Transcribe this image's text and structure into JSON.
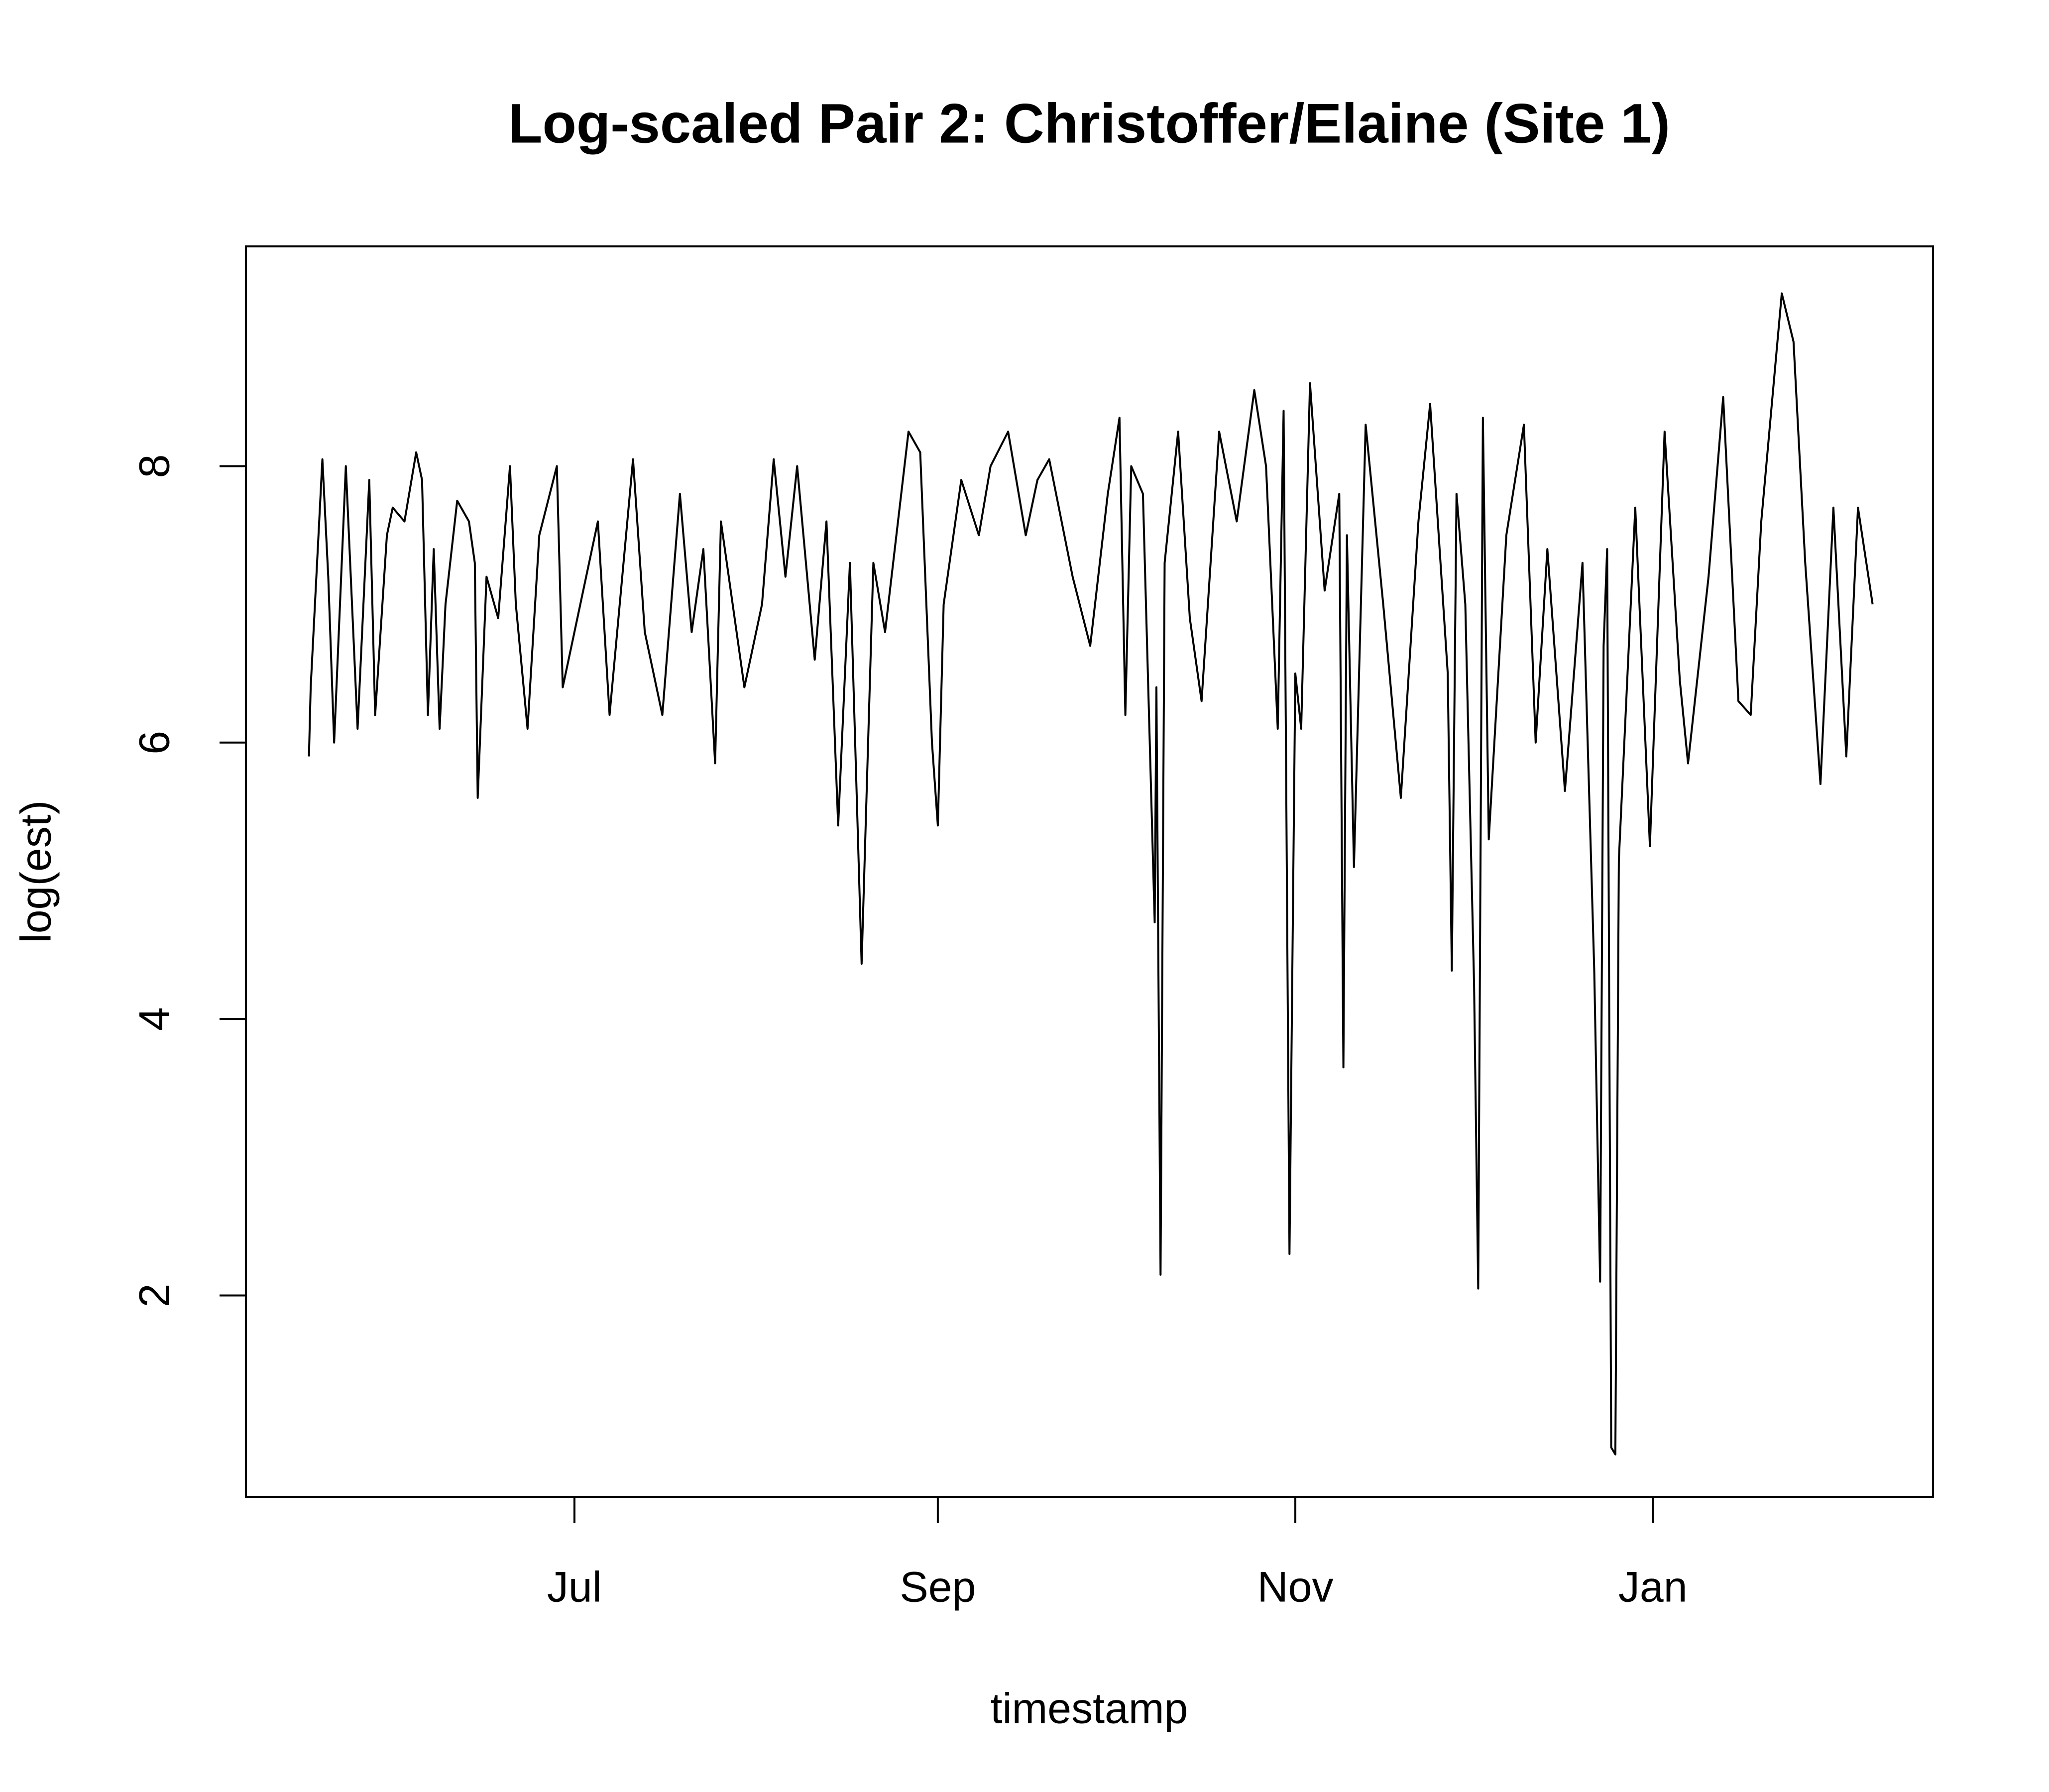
{
  "chart_data": {
    "type": "line",
    "title": "Log-scaled Pair 2: Christoffer/Elaine (Site 1)",
    "xlabel": "timestamp",
    "ylabel": "log(est)",
    "color": "#000000",
    "x": [
      -45.3,
      -45,
      -43,
      -42,
      -41,
      -39,
      -37,
      -35,
      -34,
      -32,
      -31,
      -29,
      -27,
      -26,
      -25,
      -24,
      -23,
      -22,
      -20,
      -18,
      -17,
      -16.5,
      -15,
      -13,
      -11,
      -10,
      -8,
      -6,
      -3,
      -2,
      1,
      4,
      6,
      10,
      12,
      15,
      18,
      20,
      22,
      24,
      25,
      27,
      29,
      32,
      34,
      36,
      38,
      41,
      43,
      45,
      47,
      49,
      51,
      53,
      57,
      59,
      61,
      62,
      63,
      66,
      69,
      71,
      74,
      77,
      79,
      81,
      85,
      88,
      91,
      93,
      94,
      95,
      97,
      99,
      99.3,
      100,
      100.7,
      103,
      105,
      107,
      110,
      113,
      116,
      118,
      120,
      121,
      122,
      123,
      124,
      125.5,
      128,
      130.5,
      131.2,
      131.8,
      133,
      135,
      138,
      141,
      144,
      146,
      149,
      149.7,
      150.5,
      152,
      153.5,
      154.2,
      155,
      156,
      159,
      162,
      164,
      166,
      169,
      172,
      174,
      175,
      175.6,
      176.2,
      176.9,
      177.6,
      178.2,
      181,
      183.5,
      186,
      188.6,
      190,
      193.5,
      196,
      198.6,
      200.7,
      202.5,
      206,
      208,
      210,
      212.6,
      214.8,
      217,
      219,
      221.5
    ],
    "values": [
      5.9,
      6.4,
      8.05,
      7.2,
      6.0,
      8.0,
      6.1,
      7.9,
      6.2,
      7.5,
      7.7,
      7.6,
      8.1,
      7.9,
      6.2,
      7.4,
      6.1,
      7.0,
      7.75,
      7.6,
      7.3,
      5.6,
      7.2,
      6.9,
      8.0,
      7.0,
      6.1,
      7.5,
      8.0,
      6.4,
      7.0,
      7.6,
      6.2,
      8.05,
      6.8,
      6.2,
      7.8,
      6.8,
      7.4,
      5.85,
      7.6,
      7.0,
      6.4,
      7.0,
      8.05,
      7.2,
      8.0,
      6.6,
      7.6,
      5.4,
      7.3,
      4.4,
      7.3,
      6.8,
      8.25,
      8.1,
      6.0,
      5.4,
      7.0,
      7.9,
      7.5,
      8.0,
      8.25,
      7.5,
      7.9,
      8.05,
      7.2,
      6.7,
      7.8,
      8.35,
      6.2,
      8.0,
      7.8,
      4.7,
      6.4,
      2.15,
      7.3,
      8.25,
      6.9,
      6.3,
      8.25,
      7.6,
      8.55,
      8.0,
      6.1,
      8.4,
      2.3,
      6.5,
      6.1,
      8.6,
      7.1,
      7.8,
      3.65,
      7.5,
      5.1,
      8.3,
      7.0,
      5.6,
      7.6,
      8.45,
      6.5,
      4.35,
      7.8,
      7.0,
      4.25,
      2.05,
      8.35,
      5.3,
      7.5,
      8.3,
      6.0,
      7.4,
      5.65,
      7.3,
      4.35,
      2.1,
      6.7,
      7.4,
      0.9,
      0.85,
      5.15,
      7.7,
      5.25,
      8.25,
      6.45,
      5.85,
      7.2,
      8.5,
      6.3,
      6.2,
      7.6,
      9.25,
      8.9,
      7.3,
      5.7,
      7.7,
      5.9,
      7.7,
      7.0
    ],
    "xlim": [
      -56.05,
      231.8
    ],
    "xticks": [
      {
        "value": 0,
        "label": "Jul"
      },
      {
        "value": 62,
        "label": "Sep"
      },
      {
        "value": 123,
        "label": "Nov"
      },
      {
        "value": 184,
        "label": "Jan"
      }
    ],
    "ylim": [
      0.543,
      9.59
    ],
    "yticks": [
      2,
      4,
      6,
      8
    ]
  }
}
